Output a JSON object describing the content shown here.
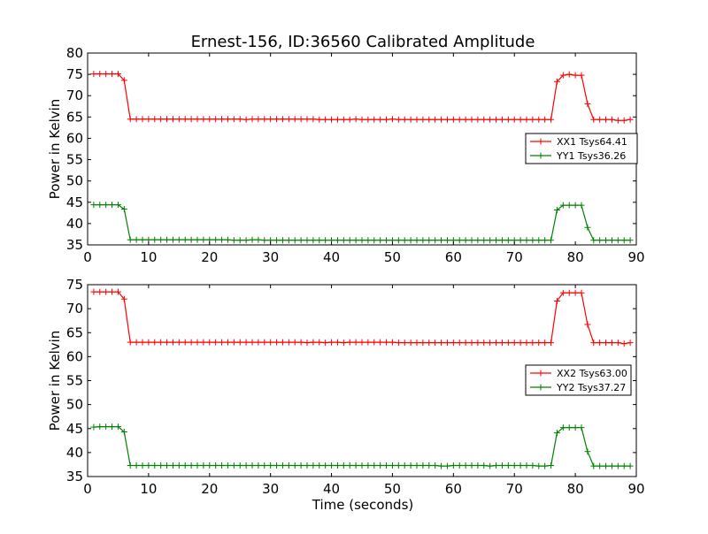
{
  "title": "Ernest-156, ID:36560 Calibrated Amplitude",
  "xlabel": "Time (seconds)",
  "chart_data": [
    {
      "type": "line",
      "title": "Ernest-156, ID:36560 Calibrated Amplitude",
      "xlabel": "",
      "ylabel": "Power in Kelvin",
      "xlim": [
        0,
        90
      ],
      "ylim": [
        35,
        80
      ],
      "xticks": [
        0,
        10,
        20,
        30,
        40,
        50,
        60,
        70,
        80,
        90
      ],
      "yticks": [
        35,
        40,
        45,
        50,
        55,
        60,
        65,
        70,
        75,
        80
      ],
      "grid": false,
      "legend_position": "center-right",
      "series": [
        {
          "name": "XX1 Tsys64.41",
          "color": "#ff0000",
          "marker": "plus",
          "x": [
            1,
            2,
            3,
            4,
            5,
            6,
            7,
            8,
            9,
            10,
            11,
            12,
            13,
            14,
            15,
            16,
            17,
            18,
            19,
            20,
            21,
            22,
            23,
            24,
            25,
            26,
            27,
            28,
            29,
            30,
            31,
            32,
            33,
            34,
            35,
            36,
            37,
            38,
            39,
            40,
            41,
            42,
            43,
            44,
            45,
            46,
            47,
            48,
            49,
            50,
            51,
            52,
            53,
            54,
            55,
            56,
            57,
            58,
            59,
            60,
            61,
            62,
            63,
            64,
            65,
            66,
            67,
            68,
            69,
            70,
            71,
            72,
            73,
            74,
            75,
            76,
            77,
            78,
            79,
            80,
            81,
            82,
            83,
            84,
            85,
            86,
            87,
            88,
            89
          ],
          "values": [
            75.1,
            75.1,
            75.1,
            75.1,
            75.1,
            73.6,
            64.5,
            64.5,
            64.5,
            64.5,
            64.5,
            64.5,
            64.5,
            64.5,
            64.5,
            64.5,
            64.5,
            64.5,
            64.5,
            64.5,
            64.5,
            64.5,
            64.5,
            64.5,
            64.5,
            64.4,
            64.5,
            64.5,
            64.5,
            64.5,
            64.5,
            64.5,
            64.5,
            64.5,
            64.5,
            64.5,
            64.5,
            64.4,
            64.4,
            64.4,
            64.4,
            64.4,
            64.4,
            64.5,
            64.4,
            64.4,
            64.4,
            64.4,
            64.4,
            64.5,
            64.4,
            64.4,
            64.4,
            64.4,
            64.4,
            64.4,
            64.4,
            64.4,
            64.4,
            64.4,
            64.4,
            64.4,
            64.4,
            64.4,
            64.4,
            64.4,
            64.4,
            64.4,
            64.4,
            64.4,
            64.4,
            64.4,
            64.4,
            64.4,
            64.4,
            64.4,
            73.3,
            74.8,
            75.0,
            74.8,
            74.8,
            68.1,
            64.4,
            64.4,
            64.4,
            64.4,
            64.2,
            64.2,
            64.4
          ]
        },
        {
          "name": "YY1 Tsys36.26",
          "color": "#008000",
          "marker": "plus",
          "x": [
            1,
            2,
            3,
            4,
            5,
            6,
            7,
            8,
            9,
            10,
            11,
            12,
            13,
            14,
            15,
            16,
            17,
            18,
            19,
            20,
            21,
            22,
            23,
            24,
            25,
            26,
            27,
            28,
            29,
            30,
            31,
            32,
            33,
            34,
            35,
            36,
            37,
            38,
            39,
            40,
            41,
            42,
            43,
            44,
            45,
            46,
            47,
            48,
            49,
            50,
            51,
            52,
            53,
            54,
            55,
            56,
            57,
            58,
            59,
            60,
            61,
            62,
            63,
            64,
            65,
            66,
            67,
            68,
            69,
            70,
            71,
            72,
            73,
            74,
            75,
            76,
            77,
            78,
            79,
            80,
            81,
            82,
            83,
            84,
            85,
            86,
            87,
            88,
            89
          ],
          "values": [
            44.4,
            44.4,
            44.4,
            44.4,
            44.4,
            43.4,
            36.2,
            36.2,
            36.2,
            36.2,
            36.2,
            36.2,
            36.2,
            36.2,
            36.2,
            36.2,
            36.2,
            36.2,
            36.2,
            36.2,
            36.2,
            36.2,
            36.2,
            36.1,
            36.1,
            36.1,
            36.2,
            36.2,
            36.1,
            36.1,
            36.1,
            36.1,
            36.1,
            36.1,
            36.1,
            36.1,
            36.1,
            36.1,
            36.1,
            36.1,
            36.1,
            36.1,
            36.1,
            36.1,
            36.1,
            36.1,
            36.1,
            36.1,
            36.1,
            36.1,
            36.1,
            36.1,
            36.1,
            36.1,
            36.1,
            36.1,
            36.1,
            36.1,
            36.1,
            36.1,
            36.1,
            36.1,
            36.1,
            36.1,
            36.1,
            36.1,
            36.1,
            36.1,
            36.1,
            36.1,
            36.1,
            36.1,
            36.1,
            36.1,
            36.1,
            36.1,
            43.2,
            44.3,
            44.3,
            44.3,
            44.3,
            39.1,
            36.1,
            36.1,
            36.1,
            36.1,
            36.1,
            36.1,
            36.1
          ]
        }
      ]
    },
    {
      "type": "line",
      "title": "",
      "xlabel": "Time (seconds)",
      "ylabel": "Power in Kelvin",
      "xlim": [
        0,
        90
      ],
      "ylim": [
        35,
        75
      ],
      "xticks": [
        0,
        10,
        20,
        30,
        40,
        50,
        60,
        70,
        80,
        90
      ],
      "yticks": [
        35,
        40,
        45,
        50,
        55,
        60,
        65,
        70,
        75
      ],
      "grid": false,
      "legend_position": "center-right",
      "series": [
        {
          "name": "XX2 Tsys63.00",
          "color": "#ff0000",
          "marker": "plus",
          "x": [
            1,
            2,
            3,
            4,
            5,
            6,
            7,
            8,
            9,
            10,
            11,
            12,
            13,
            14,
            15,
            16,
            17,
            18,
            19,
            20,
            21,
            22,
            23,
            24,
            25,
            26,
            27,
            28,
            29,
            30,
            31,
            32,
            33,
            34,
            35,
            36,
            37,
            38,
            39,
            40,
            41,
            42,
            43,
            44,
            45,
            46,
            47,
            48,
            49,
            50,
            51,
            52,
            53,
            54,
            55,
            56,
            57,
            58,
            59,
            60,
            61,
            62,
            63,
            64,
            65,
            66,
            67,
            68,
            69,
            70,
            71,
            72,
            73,
            74,
            75,
            76,
            77,
            78,
            79,
            80,
            81,
            82,
            83,
            84,
            85,
            86,
            87,
            88,
            89
          ],
          "values": [
            73.5,
            73.5,
            73.5,
            73.5,
            73.5,
            72.0,
            63.0,
            63.0,
            63.0,
            63.0,
            63.0,
            63.0,
            63.0,
            63.0,
            63.0,
            63.0,
            63.0,
            63.0,
            63.0,
            63.0,
            63.0,
            63.0,
            63.0,
            63.0,
            63.0,
            63.0,
            63.0,
            63.0,
            63.0,
            63.0,
            63.0,
            63.0,
            63.0,
            63.0,
            63.0,
            62.9,
            63.0,
            63.0,
            62.9,
            63.0,
            63.0,
            62.9,
            63.0,
            63.0,
            63.0,
            63.0,
            63.0,
            63.0,
            63.0,
            63.0,
            62.9,
            62.9,
            62.9,
            62.9,
            62.9,
            62.9,
            62.9,
            62.9,
            62.9,
            62.9,
            62.9,
            62.9,
            62.9,
            62.9,
            62.9,
            62.9,
            62.9,
            62.9,
            62.9,
            62.9,
            62.9,
            62.9,
            62.9,
            62.9,
            62.9,
            62.9,
            71.6,
            73.3,
            73.3,
            73.3,
            73.3,
            66.7,
            62.9,
            62.9,
            62.9,
            62.9,
            62.9,
            62.7,
            62.9
          ]
        },
        {
          "name": "YY2 Tsys37.27",
          "color": "#008000",
          "marker": "plus",
          "x": [
            1,
            2,
            3,
            4,
            5,
            6,
            7,
            8,
            9,
            10,
            11,
            12,
            13,
            14,
            15,
            16,
            17,
            18,
            19,
            20,
            21,
            22,
            23,
            24,
            25,
            26,
            27,
            28,
            29,
            30,
            31,
            32,
            33,
            34,
            35,
            36,
            37,
            38,
            39,
            40,
            41,
            42,
            43,
            44,
            45,
            46,
            47,
            48,
            49,
            50,
            51,
            52,
            53,
            54,
            55,
            56,
            57,
            58,
            59,
            60,
            61,
            62,
            63,
            64,
            65,
            66,
            67,
            68,
            69,
            70,
            71,
            72,
            73,
            74,
            75,
            76,
            77,
            78,
            79,
            80,
            81,
            82,
            83,
            84,
            85,
            86,
            87,
            88,
            89
          ],
          "values": [
            45.3,
            45.4,
            45.4,
            45.4,
            45.4,
            44.3,
            37.3,
            37.3,
            37.3,
            37.3,
            37.3,
            37.3,
            37.3,
            37.3,
            37.3,
            37.3,
            37.3,
            37.3,
            37.3,
            37.3,
            37.3,
            37.3,
            37.3,
            37.3,
            37.3,
            37.3,
            37.3,
            37.3,
            37.3,
            37.3,
            37.3,
            37.3,
            37.3,
            37.3,
            37.3,
            37.3,
            37.3,
            37.3,
            37.3,
            37.3,
            37.3,
            37.3,
            37.3,
            37.3,
            37.3,
            37.3,
            37.3,
            37.3,
            37.3,
            37.3,
            37.3,
            37.3,
            37.3,
            37.3,
            37.3,
            37.3,
            37.3,
            37.2,
            37.2,
            37.3,
            37.3,
            37.3,
            37.3,
            37.3,
            37.3,
            37.2,
            37.3,
            37.3,
            37.3,
            37.3,
            37.3,
            37.3,
            37.3,
            37.2,
            37.2,
            37.3,
            44.1,
            45.2,
            45.2,
            45.2,
            45.2,
            40.2,
            37.2,
            37.2,
            37.2,
            37.2,
            37.2,
            37.2,
            37.2
          ]
        }
      ]
    }
  ]
}
